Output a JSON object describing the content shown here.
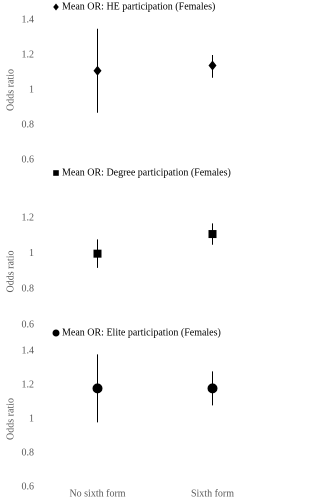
{
  "chart_data": [
    {
      "type": "errorbar",
      "legend": "Mean OR: HE participation (Females)",
      "marker": "diamond",
      "color": "#000000",
      "y_label": "Odds ratio",
      "categories": [
        "No sixth form",
        "Sixth form"
      ],
      "values": [
        1.11,
        1.14
      ],
      "lower": [
        0.87,
        1.07
      ],
      "upper": [
        1.35,
        1.2
      ],
      "ylim": [
        0.6,
        1.4
      ],
      "yticks": [
        0.6,
        0.8,
        1,
        1.2,
        1.4
      ]
    },
    {
      "type": "errorbar",
      "legend": "Mean OR: Degree participation (Females)",
      "marker": "square",
      "color": "#000000",
      "y_label": "Odds ratio",
      "categories": [
        "No sixth form",
        "Sixth form"
      ],
      "values": [
        1.0,
        1.11
      ],
      "lower": [
        0.92,
        1.05
      ],
      "upper": [
        1.08,
        1.17
      ],
      "ylim": [
        0.6,
        1.2
      ],
      "yticks": [
        0.6,
        0.8,
        1,
        1.2
      ]
    },
    {
      "type": "errorbar",
      "legend": "Mean OR: Elite participation (Females)",
      "marker": "circle",
      "color": "#000000",
      "y_label": "Odds ratio",
      "categories": [
        "No sixth form",
        "Sixth form"
      ],
      "values": [
        1.18,
        1.18
      ],
      "lower": [
        0.98,
        1.08
      ],
      "upper": [
        1.38,
        1.28
      ],
      "ylim": [
        0.6,
        1.4
      ],
      "yticks": [
        0.6,
        0.8,
        1,
        1.2,
        1.4
      ]
    }
  ]
}
